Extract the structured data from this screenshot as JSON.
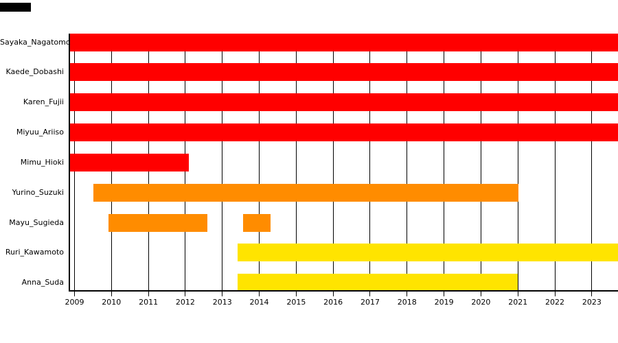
{
  "chart_data": {
    "type": "gantt",
    "title": "",
    "xlabel": "",
    "ylabel": "",
    "grid": true,
    "legend": "none",
    "x_range": [
      2008.86,
      2023.72
    ],
    "x_ticks": [
      "2009",
      "2010",
      "2011",
      "2012",
      "2013",
      "2014",
      "2015",
      "2016",
      "2017",
      "2018",
      "2019",
      "2020",
      "2021",
      "2022",
      "2023"
    ],
    "rows": [
      {
        "label": "Sayaka_Nagatomo",
        "color": "red",
        "segments": [
          {
            "start": 2008.86,
            "end": 2023.72
          }
        ]
      },
      {
        "label": "Kaede_Dobashi",
        "color": "red",
        "segments": [
          {
            "start": 2008.86,
            "end": 2023.72
          }
        ]
      },
      {
        "label": "Karen_Fujii",
        "color": "red",
        "segments": [
          {
            "start": 2008.86,
            "end": 2023.72
          }
        ]
      },
      {
        "label": "Miyuu_Ariiso",
        "color": "red",
        "segments": [
          {
            "start": 2008.86,
            "end": 2023.72
          }
        ]
      },
      {
        "label": "Mimu_Hioki",
        "color": "red",
        "segments": [
          {
            "start": 2008.86,
            "end": 2012.1
          }
        ]
      },
      {
        "label": "Yurino_Suzuki",
        "color": "orange",
        "segments": [
          {
            "start": 2009.51,
            "end": 2021.01
          }
        ]
      },
      {
        "label": "Mayu_Sugieda",
        "color": "orange",
        "segments": [
          {
            "start": 2009.92,
            "end": 2012.6
          },
          {
            "start": 2013.56,
            "end": 2014.3
          }
        ]
      },
      {
        "label": "Ruri_Kawamoto",
        "color": "yellow",
        "segments": [
          {
            "start": 2013.42,
            "end": 2023.72
          }
        ]
      },
      {
        "label": "Anna_Suda",
        "color": "yellow",
        "segments": [
          {
            "start": 2013.42,
            "end": 2021.0
          }
        ]
      }
    ],
    "colors": {
      "red": "#ff0000",
      "orange": "#ff8c00",
      "yellow": "#ffe400",
      "axis": "#000000",
      "grid": "#000000",
      "text": "#000000"
    }
  },
  "decor": {
    "corner_marker_color": "#000000"
  }
}
